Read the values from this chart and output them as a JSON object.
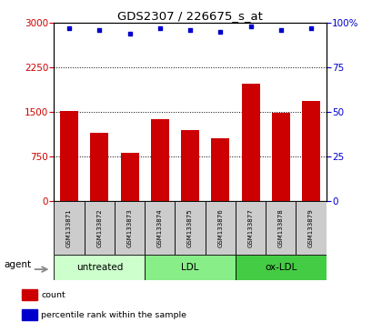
{
  "title": "GDS2307 / 226675_s_at",
  "samples": [
    "GSM133871",
    "GSM133872",
    "GSM133873",
    "GSM133874",
    "GSM133875",
    "GSM133876",
    "GSM133877",
    "GSM133878",
    "GSM133879"
  ],
  "counts": [
    1520,
    1150,
    820,
    1380,
    1200,
    1050,
    1980,
    1480,
    1680
  ],
  "percentiles": [
    97,
    96,
    94,
    97,
    96,
    95,
    98,
    96,
    97
  ],
  "bar_color": "#cc0000",
  "dot_color": "#0000cc",
  "left_ylim": [
    0,
    3000
  ],
  "right_ylim": [
    0,
    100
  ],
  "left_yticks": [
    0,
    750,
    1500,
    2250,
    3000
  ],
  "right_yticks": [
    0,
    25,
    50,
    75,
    100
  ],
  "right_yticklabels": [
    "0",
    "25",
    "50",
    "75",
    "100%"
  ],
  "groups": [
    {
      "label": "untreated",
      "indices": [
        0,
        1,
        2
      ],
      "color": "#ccffcc"
    },
    {
      "label": "LDL",
      "indices": [
        3,
        4,
        5
      ],
      "color": "#88ee88"
    },
    {
      "label": "ox-LDL",
      "indices": [
        6,
        7,
        8
      ],
      "color": "#44cc44"
    }
  ],
  "agent_label": "agent",
  "legend_items": [
    {
      "label": "count",
      "color": "#cc0000"
    },
    {
      "label": "percentile rank within the sample",
      "color": "#0000cc"
    }
  ],
  "tick_label_color_left": "#cc0000",
  "tick_label_color_right": "#0000cc",
  "sample_box_color": "#cccccc"
}
